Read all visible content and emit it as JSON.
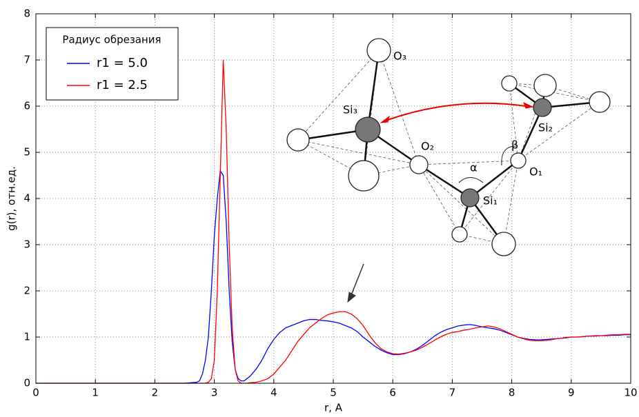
{
  "chart_data": {
    "type": "line",
    "xlabel": "r, A",
    "ylabel": "g(r), отн.ед.",
    "legend_title": "Радиус обрезания",
    "legend": "upper left",
    "grid": true,
    "xlim": [
      0,
      10
    ],
    "ylim": [
      0,
      8
    ],
    "xticks": [
      0,
      1,
      2,
      3,
      4,
      5,
      6,
      7,
      8,
      9,
      10
    ],
    "yticks": [
      0,
      1,
      2,
      3,
      4,
      5,
      6,
      7,
      8
    ],
    "annotations": [
      "O₃",
      "Si₃",
      "O₂",
      "α",
      "β",
      "O₁",
      "Si₁",
      "Si₂"
    ],
    "x": [
      0,
      0.5,
      1,
      1.5,
      2,
      2.5,
      2.6,
      2.7,
      2.75,
      2.8,
      2.85,
      2.9,
      2.95,
      3.0,
      3.05,
      3.1,
      3.15,
      3.2,
      3.25,
      3.3,
      3.35,
      3.4,
      3.45,
      3.5,
      3.55,
      3.6,
      3.7,
      3.8,
      3.9,
      4.0,
      4.1,
      4.2,
      4.3,
      4.4,
      4.5,
      4.6,
      4.7,
      4.8,
      4.9,
      5.0,
      5.1,
      5.2,
      5.3,
      5.4,
      5.5,
      5.6,
      5.7,
      5.8,
      5.9,
      6.0,
      6.1,
      6.2,
      6.3,
      6.4,
      6.5,
      6.6,
      6.7,
      6.8,
      6.9,
      7.0,
      7.1,
      7.2,
      7.3,
      7.4,
      7.5,
      7.6,
      7.7,
      7.8,
      7.9,
      8.0,
      8.1,
      8.2,
      8.3,
      8.4,
      8.5,
      8.6,
      8.7,
      8.8,
      8.9,
      9.0,
      9.1,
      9.2,
      9.3,
      9.4,
      9.5,
      9.6,
      9.7,
      9.8,
      9.9,
      10.0
    ],
    "series": [
      {
        "name": "r1 = 5.0",
        "color": "#0000ff",
        "values": [
          0,
          0,
          0,
          0,
          0,
          0,
          0.01,
          0.02,
          0.05,
          0.2,
          0.5,
          1.0,
          2.0,
          3.2,
          4.0,
          4.6,
          4.5,
          3.5,
          2.0,
          0.9,
          0.3,
          0.1,
          0.05,
          0.05,
          0.1,
          0.15,
          0.3,
          0.5,
          0.75,
          0.95,
          1.1,
          1.2,
          1.25,
          1.3,
          1.35,
          1.38,
          1.38,
          1.36,
          1.35,
          1.33,
          1.3,
          1.25,
          1.2,
          1.12,
          1.0,
          0.9,
          0.8,
          0.72,
          0.66,
          0.62,
          0.62,
          0.64,
          0.68,
          0.74,
          0.82,
          0.92,
          1.02,
          1.1,
          1.16,
          1.2,
          1.24,
          1.26,
          1.27,
          1.25,
          1.22,
          1.2,
          1.18,
          1.15,
          1.1,
          1.05,
          1.0,
          0.97,
          0.95,
          0.94,
          0.94,
          0.95,
          0.96,
          0.97,
          0.98,
          1.0,
          1.0,
          1.01,
          1.02,
          1.02,
          1.03,
          1.03,
          1.04,
          1.04,
          1.05,
          1.05
        ]
      },
      {
        "name": "r1 = 2.5",
        "color": "#ff0000",
        "values": [
          0,
          0,
          0,
          0,
          0,
          0,
          0,
          0,
          0,
          0,
          0,
          0.02,
          0.1,
          0.5,
          2.0,
          4.5,
          7.0,
          5.5,
          3.0,
          1.2,
          0.3,
          0.05,
          0,
          0,
          0,
          0.01,
          0.02,
          0.05,
          0.1,
          0.2,
          0.35,
          0.5,
          0.7,
          0.9,
          1.05,
          1.2,
          1.3,
          1.4,
          1.48,
          1.52,
          1.55,
          1.55,
          1.5,
          1.4,
          1.25,
          1.05,
          0.88,
          0.75,
          0.68,
          0.64,
          0.63,
          0.65,
          0.68,
          0.72,
          0.78,
          0.85,
          0.93,
          1.0,
          1.06,
          1.1,
          1.12,
          1.15,
          1.17,
          1.2,
          1.22,
          1.24,
          1.22,
          1.18,
          1.12,
          1.06,
          1.0,
          0.96,
          0.93,
          0.92,
          0.92,
          0.93,
          0.95,
          0.97,
          0.99,
          1.0,
          1.0,
          1.01,
          1.02,
          1.03,
          1.03,
          1.04,
          1.05,
          1.05,
          1.06,
          1.06
        ]
      }
    ]
  }
}
